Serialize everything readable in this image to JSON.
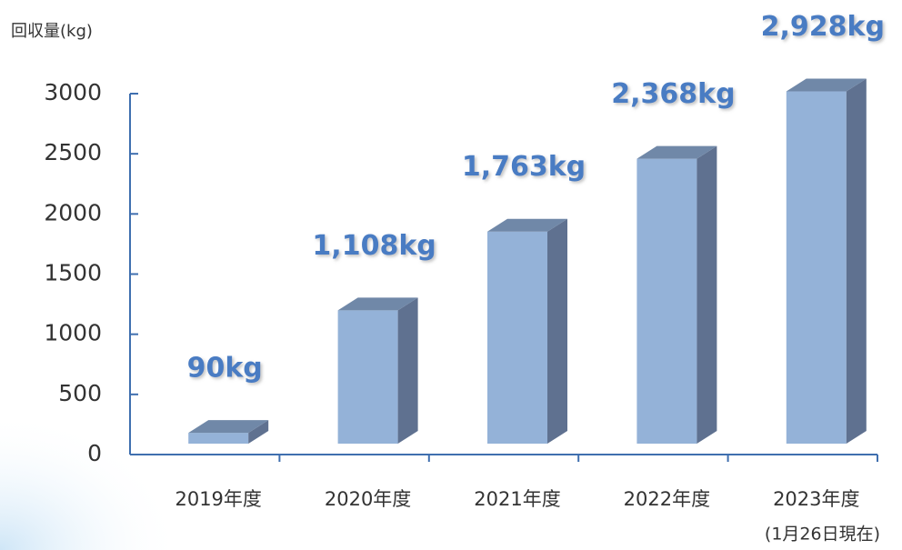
{
  "chart_data": {
    "type": "bar",
    "y_label": "回収量(kg)",
    "categories": [
      "2019年度",
      "2020年度",
      "2021年度",
      "2022年度",
      "2023年度"
    ],
    "values": [
      90,
      1108,
      1763,
      2368,
      2928
    ],
    "value_labels": [
      "90kg",
      "1,108kg",
      "1,763kg",
      "2,368kg",
      "2,928kg"
    ],
    "note": "(1月26日現在)",
    "color": "#94b2d8",
    "ylim": [
      0,
      3000
    ],
    "yticks": [
      0,
      500,
      1000,
      1500,
      2000,
      2500,
      3000
    ],
    "grid": false
  }
}
